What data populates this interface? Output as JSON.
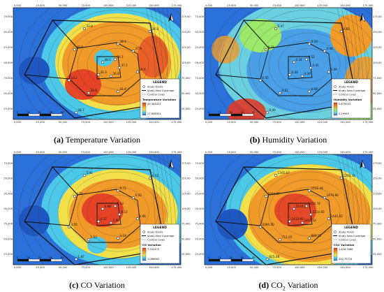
{
  "axis": {
    "x_ticks": [
      "0,000",
      "25,000",
      "50,000",
      "75,000",
      "100,000",
      "125,000",
      "150,000",
      "175,000"
    ],
    "y_ticks": [
      "175,000",
      "150,000",
      "125,000",
      "100,000",
      "75,000",
      "50,000",
      "25,000"
    ]
  },
  "legend_common": {
    "title": "LEGEND",
    "study_points": "Study Points",
    "study_area": "Study Area Coverage",
    "contour": "Contour Lines"
  },
  "scale_bar_labels": [
    "0",
    "10",
    "20",
    "40",
    "60"
  ],
  "north_arrow_icon": "north-arrow-icon",
  "panels": [
    {
      "id": "a",
      "caption_letter": "(a)",
      "caption_text": " Temperature Variation",
      "legend_var_title": "Temperature Variation",
      "legend_max": "40.364023",
      "legend_min": "27.808001",
      "point_values": [
        "38.5",
        "34.1",
        "37.2",
        "36.8",
        "35.3",
        "39.9",
        "38.4",
        "37.9",
        "36.6",
        "31.4",
        "29.9",
        "33.2",
        "33.8",
        "34.3",
        "30.6",
        "28.7"
      ],
      "colors": {
        "low": "#2b6fd8",
        "mid": "#4bc8e8",
        "hi1": "#f2e04a",
        "hi2": "#f09a2a",
        "hot": "#e23a26"
      }
    },
    {
      "id": "b",
      "caption_letter": "(b)",
      "caption_text": " Humidity Variation",
      "legend_var_title": "Humidity Variation",
      "legend_max": "0.679003",
      "legend_min": "0.29945",
      "point_values": [
        "0.34",
        "0.52",
        "0.41",
        "0.39",
        "0.44",
        "0.31",
        "0.33",
        "0.46",
        "0.49",
        "0.58",
        "0.61",
        "0.55",
        "0.47",
        "0.62",
        "0.64",
        "0.66"
      ],
      "colors": {
        "low": "#2b6fd8",
        "mid": "#6ad0e0",
        "hi1": "#9be86a",
        "hi2": "#f09a2a",
        "hot": "#e23a26"
      }
    },
    {
      "id": "c",
      "caption_letter": "(c)",
      "caption_text": " CO Variation",
      "legend_var_title": "CO Variation",
      "legend_max": "7.332470",
      "legend_min": "1.066662",
      "point_values": [
        "6.98",
        "5.43",
        "6.12",
        "5.88",
        "4.37",
        "6.55",
        "6.71",
        "5.02",
        "4.66",
        "2.14",
        "1.23",
        "3.55",
        "3.91",
        "4.12",
        "2.78",
        "1.87"
      ],
      "colors": {
        "low": "#2b6fd8",
        "mid": "#4bc8e8",
        "hi1": "#f2e04a",
        "hi2": "#f09a2a",
        "hot": "#e23a26"
      }
    },
    {
      "id": "d",
      "caption_letter": "(d)",
      "caption_text": " CO",
      "caption_sub": "2",
      "caption_tail": " Variation",
      "legend_var_title": "CO2 Variation",
      "legend_max": "1,626.3088",
      "legend_min": "432.79724",
      "point_values": [
        "1535.25",
        "1456.74",
        "1514.65",
        "1491.32",
        "1433.92",
        "1604.87",
        "1555.44",
        "1476.90",
        "1445.02",
        "889.21",
        "712.45",
        "1094.50",
        "1165.67",
        "1203.33",
        "954.30",
        "615.08"
      ],
      "colors": {
        "low": "#2b6fd8",
        "mid": "#4bc8e8",
        "hi1": "#f2e04a",
        "hi2": "#f09a2a",
        "hot": "#e23a26"
      }
    }
  ]
}
